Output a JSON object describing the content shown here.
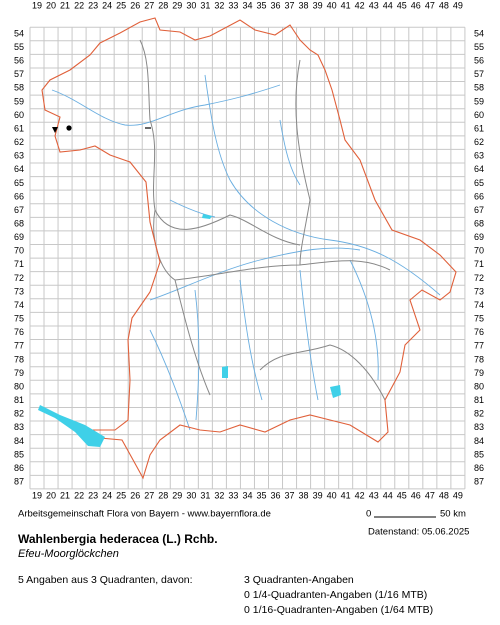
{
  "map": {
    "columns": [
      19,
      20,
      21,
      22,
      23,
      24,
      25,
      26,
      27,
      28,
      29,
      30,
      31,
      32,
      33,
      34,
      35,
      36,
      37,
      38,
      39,
      40,
      41,
      42,
      43,
      44,
      45,
      46,
      47,
      48,
      49
    ],
    "rows": [
      54,
      55,
      56,
      57,
      58,
      59,
      60,
      61,
      62,
      63,
      64,
      65,
      66,
      67,
      68,
      69,
      70,
      71,
      72,
      73,
      74,
      75,
      76,
      77,
      78,
      79,
      80,
      81,
      82,
      83,
      84,
      85,
      86,
      87
    ],
    "scale_start": "0",
    "scale_end": "50 km"
  },
  "footer": {
    "credit": "Arbeitsgemeinschaft Flora von Bayern - www.bayernflora.de",
    "date": "Datenstand: 05.06.2025",
    "title": "Wahlenbergia hederacea (L.) Rchb.",
    "subtitle": "Efeu-Moorglöckchen",
    "summary": "5 Angaben aus 3 Quadranten, davon:",
    "counts": [
      "3 Quadranten-Angaben",
      "0 1/4-Quadranten-Angaben (1/16 MTB)",
      "0 1/16-Quadranten-Angaben (1/64 MTB)"
    ]
  }
}
